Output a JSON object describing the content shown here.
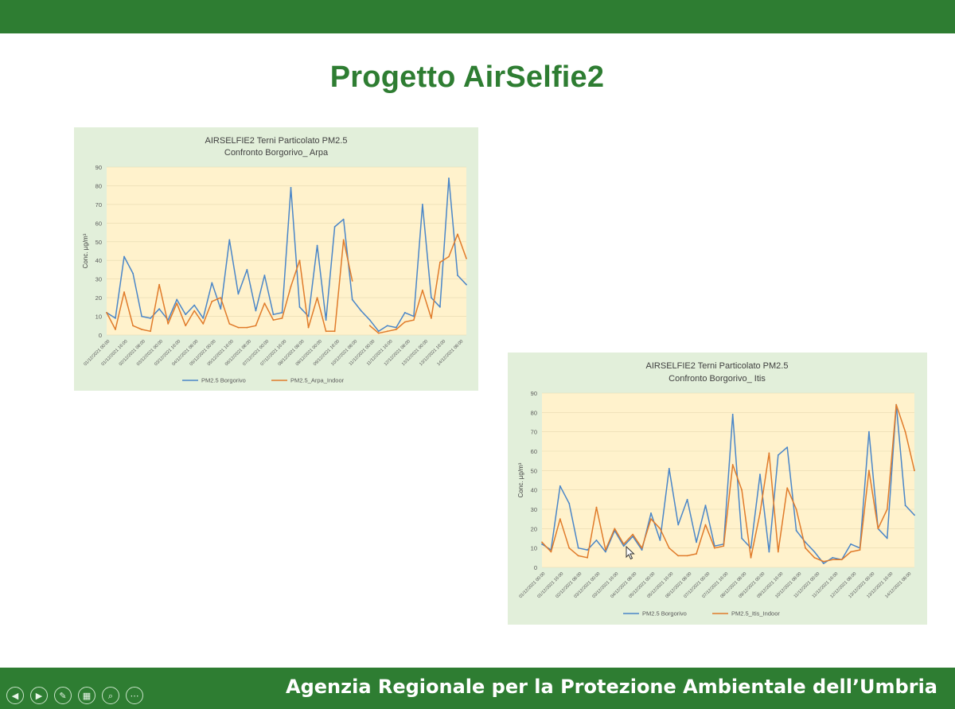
{
  "slide": {
    "title": "Progetto AirSelfie2",
    "footer": "Agenzia Regionale per la Protezione Ambientale dell’Umbria"
  },
  "nav": {
    "icons": [
      "prev-icon",
      "next-icon",
      "pen-icon",
      "slides-icon",
      "zoom-icon",
      "more-icon"
    ],
    "glyphs": [
      "◀",
      "▶",
      "✎",
      "▦",
      "⌕",
      "⋯"
    ]
  },
  "colors": {
    "brand_green": "#2e7d32",
    "panel_bg": "#e2efda",
    "plot_bg": "#fff2cc",
    "series_blue": "#4a86c8",
    "series_orange": "#e07b2a"
  },
  "chart_data": [
    {
      "type": "line",
      "title": "AIRSELFIE2 Terni  Particolato PM2.5",
      "subtitle": "Confronto Borgorivo_ Arpa",
      "ylabel": "Conc.  µg/m³",
      "ylim": [
        0,
        90
      ],
      "yticks": [
        0,
        10,
        20,
        30,
        40,
        50,
        60,
        70,
        80,
        90
      ],
      "xtick_labels": [
        "01/12/2021 00:00",
        "01/12/2021 16:00",
        "02/12/2021 08:00",
        "03/12/2021 00:00",
        "03/12/2021 16:00",
        "04/12/2021 08:00",
        "05/12/2021 00:00",
        "05/12/2021 16:00",
        "06/12/2021 08:00",
        "07/12/2021 00:00",
        "07/12/2021 16:00",
        "08/12/2021 08:00",
        "09/12/2021 00:00",
        "09/12/2021 16:00",
        "10/12/2021 08:00",
        "11/12/2021 00:00",
        "11/12/2021 16:00",
        "12/12/2021 08:00",
        "13/12/2021 00:00",
        "13/12/2021 16:00",
        "14/12/2021 08:00"
      ],
      "x": [
        "01/12 00:00",
        "01/12 08:00",
        "01/12 16:00",
        "02/12 00:00",
        "02/12 08:00",
        "02/12 16:00",
        "03/12 00:00",
        "03/12 08:00",
        "03/12 16:00",
        "04/12 00:00",
        "04/12 08:00",
        "04/12 16:00",
        "05/12 00:00",
        "05/12 08:00",
        "05/12 16:00",
        "06/12 00:00",
        "06/12 08:00",
        "06/12 16:00",
        "07/12 00:00",
        "07/12 08:00",
        "07/12 16:00",
        "08/12 00:00",
        "08/12 08:00",
        "08/12 16:00",
        "09/12 00:00",
        "09/12 08:00",
        "09/12 16:00",
        "10/12 00:00",
        "10/12 08:00",
        "10/12 16:00",
        "11/12 00:00",
        "11/12 08:00",
        "11/12 16:00",
        "12/12 00:00",
        "12/12 08:00",
        "12/12 16:00",
        "13/12 00:00",
        "13/12 08:00",
        "13/12 16:00",
        "14/12 00:00",
        "14/12 08:00",
        "14/12 16:00"
      ],
      "series": [
        {
          "name": "PM2.5 Borgorivo",
          "color": "#4a86c8",
          "values": [
            12,
            9,
            42,
            33,
            10,
            9,
            14,
            8,
            19,
            11,
            16,
            9,
            28,
            14,
            51,
            22,
            35,
            13,
            32,
            11,
            12,
            79,
            15,
            10,
            48,
            8,
            58,
            62,
            19,
            13,
            8,
            2,
            5,
            4,
            12,
            10,
            70,
            20,
            15,
            84,
            32,
            27
          ]
        },
        {
          "name": "PM2.5_Arpa_Indoor",
          "color": "#e07b2a",
          "values": [
            12,
            3,
            23,
            5,
            3,
            2,
            27,
            6,
            17,
            5,
            13,
            6,
            18,
            20,
            6,
            4,
            4,
            5,
            17,
            8,
            9,
            26,
            40,
            4,
            20,
            2,
            2,
            51,
            29,
            null,
            5,
            1,
            2,
            3,
            7,
            8,
            24,
            9,
            39,
            42,
            54,
            41
          ]
        }
      ],
      "legend": "bottom-center"
    },
    {
      "type": "line",
      "title": "AIRSELFIE2 Terni  Particolato PM2.5",
      "subtitle": "Confronto Borgorivo_ Itis",
      "ylabel": "Conc.  µg/m³",
      "ylim": [
        0,
        90
      ],
      "yticks": [
        0,
        10,
        20,
        30,
        40,
        50,
        60,
        70,
        80,
        90
      ],
      "xtick_labels": [
        "01/12/2021 00:00",
        "01/12/2021 16:00",
        "02/12/2021 08:00",
        "03/12/2021 00:00",
        "03/12/2021 16:00",
        "04/12/2021 08:00",
        "05/12/2021 00:00",
        "05/12/2021 16:00",
        "06/12/2021 08:00",
        "07/12/2021 00:00",
        "07/12/2021 16:00",
        "08/12/2021 08:00",
        "09/12/2021 00:00",
        "09/12/2021 16:00",
        "10/12/2021 08:00",
        "11/12/2021 00:00",
        "11/12/2021 16:00",
        "12/12/2021 08:00",
        "13/12/2021 00:00",
        "13/12/2021 16:00",
        "14/12/2021 08:00"
      ],
      "x": [
        "01/12 00:00",
        "01/12 08:00",
        "01/12 16:00",
        "02/12 00:00",
        "02/12 08:00",
        "02/12 16:00",
        "03/12 00:00",
        "03/12 08:00",
        "03/12 16:00",
        "04/12 00:00",
        "04/12 08:00",
        "04/12 16:00",
        "05/12 00:00",
        "05/12 08:00",
        "05/12 16:00",
        "06/12 00:00",
        "06/12 08:00",
        "06/12 16:00",
        "07/12 00:00",
        "07/12 08:00",
        "07/12 16:00",
        "08/12 00:00",
        "08/12 08:00",
        "08/12 16:00",
        "09/12 00:00",
        "09/12 08:00",
        "09/12 16:00",
        "10/12 00:00",
        "10/12 08:00",
        "10/12 16:00",
        "11/12 00:00",
        "11/12 08:00",
        "11/12 16:00",
        "12/12 00:00",
        "12/12 08:00",
        "12/12 16:00",
        "13/12 00:00",
        "13/12 08:00",
        "13/12 16:00",
        "14/12 00:00",
        "14/12 08:00",
        "14/12 16:00"
      ],
      "series": [
        {
          "name": "PM2.5 Borgorivo",
          "color": "#4a86c8",
          "values": [
            12,
            9,
            42,
            33,
            10,
            9,
            14,
            8,
            19,
            11,
            16,
            9,
            28,
            14,
            51,
            22,
            35,
            13,
            32,
            11,
            12,
            79,
            15,
            10,
            48,
            8,
            58,
            62,
            19,
            13,
            8,
            2,
            5,
            4,
            12,
            10,
            70,
            20,
            15,
            84,
            32,
            27
          ]
        },
        {
          "name": "PM2.5_Itis_Indoor",
          "color": "#e07b2a",
          "values": [
            13,
            8,
            25,
            10,
            6,
            5,
            31,
            9,
            20,
            12,
            17,
            10,
            25,
            20,
            10,
            6,
            6,
            7,
            22,
            10,
            11,
            53,
            40,
            5,
            28,
            59,
            8,
            41,
            30,
            10,
            5,
            3,
            4,
            4,
            8,
            9,
            50,
            20,
            30,
            84,
            70,
            50
          ]
        }
      ],
      "legend": "bottom-center"
    }
  ]
}
